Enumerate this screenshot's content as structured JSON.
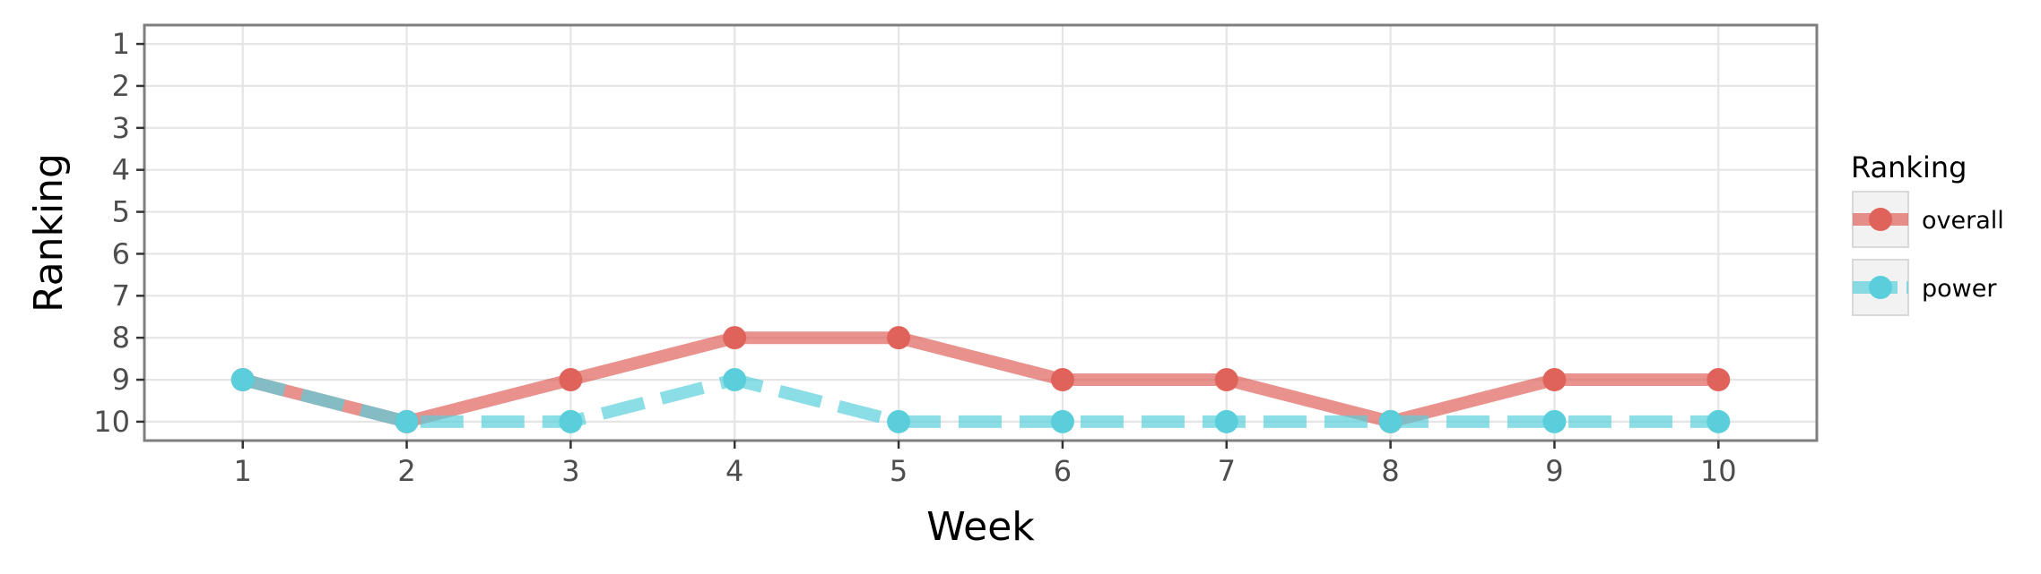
{
  "chart_data": {
    "type": "line",
    "xlabel": "Week",
    "ylabel": "Ranking",
    "x": [
      1,
      2,
      3,
      4,
      5,
      6,
      7,
      8,
      9,
      10
    ],
    "xlim": [
      0.4,
      10.6
    ],
    "ylim": [
      10.45,
      0.55
    ],
    "y_reversed": true,
    "xticks": [
      "1",
      "2",
      "3",
      "4",
      "5",
      "6",
      "7",
      "8",
      "9",
      "10"
    ],
    "yticks": [
      "1",
      "2",
      "3",
      "4",
      "5",
      "6",
      "7",
      "8",
      "9",
      "10"
    ],
    "grid": true,
    "legend": {
      "title": "Ranking",
      "position": "right"
    },
    "series": [
      {
        "name": "overall",
        "values": [
          9,
          10,
          9,
          8,
          8,
          9,
          9,
          10,
          9,
          9
        ],
        "color": "#e0635b",
        "line_style": "solid"
      },
      {
        "name": "power",
        "values": [
          9,
          10,
          10,
          9,
          10,
          10,
          10,
          10,
          10,
          10
        ],
        "color": "#5acfdb",
        "line_style": "dashed"
      }
    ]
  }
}
